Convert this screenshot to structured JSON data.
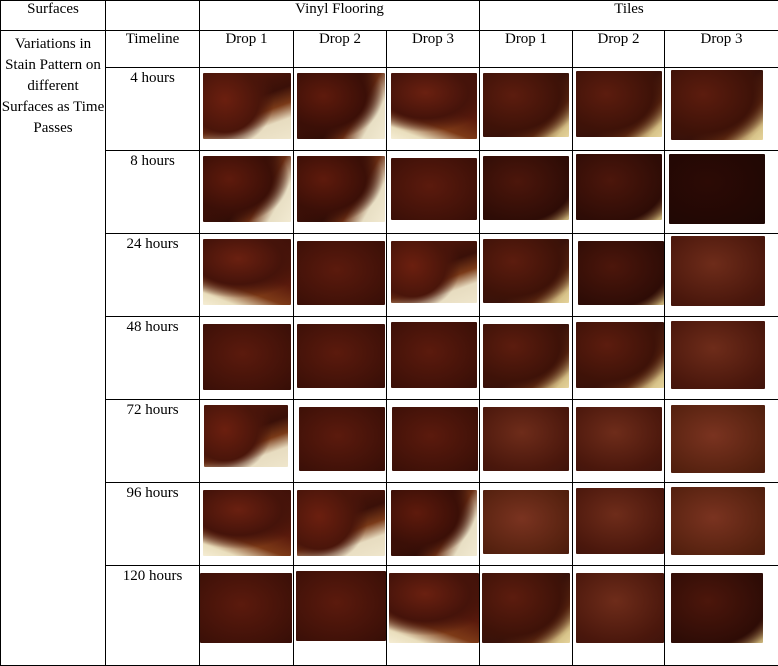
{
  "header": {
    "surfaces": "Surfaces",
    "vinyl": "Vinyl Flooring",
    "tiles": "Tiles",
    "description": "Variations in Stain Pattern on different Surfaces as Time Passes",
    "timeline": "Timeline",
    "drops": [
      "Drop 1",
      "Drop 2",
      "Drop 3",
      "Drop 1",
      "Drop 2",
      "Drop 3"
    ]
  },
  "rows": [
    {
      "time": "4 hours"
    },
    {
      "time": "8 hours"
    },
    {
      "time": "24 hours"
    },
    {
      "time": "48 hours"
    },
    {
      "time": "72 hours"
    },
    {
      "time": "96 hours"
    },
    {
      "time": "120 hours"
    }
  ]
}
